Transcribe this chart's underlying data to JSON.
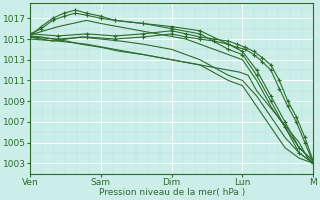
{
  "bg_color": "#cceee8",
  "grid_color_major": "#ffffff",
  "grid_color_minor": "#b8ddd8",
  "line_color": "#2d6b2d",
  "ylabel_text": "Pression niveau de la mer( hPa )",
  "yticks": [
    1003,
    1005,
    1007,
    1009,
    1011,
    1013,
    1015,
    1017
  ],
  "xlabels": [
    "Ven",
    "Sam",
    "Dim",
    "Lun",
    "M"
  ],
  "ylim": [
    1002.0,
    1018.5
  ],
  "xlim": [
    0,
    100
  ],
  "series": [
    {
      "x": [
        0,
        4,
        8,
        13,
        18,
        25,
        32,
        40,
        50,
        60,
        70,
        75,
        80,
        85,
        90,
        95,
        100
      ],
      "y": [
        1015.2,
        1015.0,
        1014.8,
        1015.0,
        1015.2,
        1015.0,
        1014.8,
        1014.5,
        1014.0,
        1013.0,
        1011.5,
        1011.0,
        1009.5,
        1007.5,
        1005.5,
        1004.0,
        1003.0
      ],
      "marker": false
    },
    {
      "x": [
        0,
        4,
        8,
        13,
        18,
        25,
        32,
        40,
        50,
        60,
        70,
        75,
        80,
        85,
        90,
        95,
        100
      ],
      "y": [
        1015.3,
        1015.2,
        1015.0,
        1014.8,
        1014.5,
        1014.2,
        1013.8,
        1013.5,
        1013.0,
        1012.5,
        1011.0,
        1010.5,
        1008.5,
        1006.5,
        1004.5,
        1003.5,
        1003.0
      ],
      "marker": false
    },
    {
      "x": [
        0,
        5,
        10,
        15,
        20,
        25,
        35,
        45,
        55,
        65,
        75,
        80,
        85,
        90,
        95,
        100
      ],
      "y": [
        1015.4,
        1015.8,
        1016.2,
        1016.5,
        1016.8,
        1016.5,
        1016.0,
        1015.5,
        1015.0,
        1014.0,
        1013.0,
        1011.0,
        1008.5,
        1006.5,
        1004.5,
        1003.2
      ],
      "marker": false
    },
    {
      "x": [
        0,
        4,
        8,
        12,
        16,
        20,
        25,
        30,
        40,
        50,
        60,
        70,
        75,
        80,
        85,
        90,
        95,
        100
      ],
      "y": [
        1015.5,
        1016.0,
        1016.8,
        1017.2,
        1017.5,
        1017.3,
        1017.0,
        1016.8,
        1016.5,
        1016.2,
        1015.8,
        1014.5,
        1013.8,
        1012.0,
        1009.5,
        1007.0,
        1004.5,
        1003.2
      ],
      "marker": true
    },
    {
      "x": [
        0,
        4,
        8,
        12,
        16,
        20,
        25,
        30,
        40,
        50,
        60,
        70,
        75,
        80,
        85,
        90,
        95,
        100
      ],
      "y": [
        1015.3,
        1016.2,
        1017.0,
        1017.5,
        1017.8,
        1017.5,
        1017.2,
        1016.8,
        1016.5,
        1016.0,
        1015.5,
        1014.0,
        1013.5,
        1011.5,
        1009.0,
        1006.5,
        1004.0,
        1003.0
      ],
      "marker": true
    },
    {
      "x": [
        0,
        10,
        20,
        30,
        40,
        50,
        55,
        60,
        65,
        70,
        73,
        76,
        79,
        82,
        85,
        88,
        91,
        94,
        97,
        100
      ],
      "y": [
        1015.5,
        1015.3,
        1015.5,
        1015.3,
        1015.5,
        1015.8,
        1015.5,
        1015.2,
        1015.0,
        1014.8,
        1014.5,
        1014.2,
        1013.8,
        1013.2,
        1012.5,
        1011.0,
        1009.0,
        1007.5,
        1005.5,
        1003.2
      ],
      "marker": true
    },
    {
      "x": [
        0,
        10,
        20,
        30,
        40,
        50,
        55,
        60,
        65,
        70,
        73,
        76,
        79,
        82,
        85,
        88,
        91,
        94,
        97,
        100
      ],
      "y": [
        1015.2,
        1015.0,
        1015.2,
        1015.0,
        1015.2,
        1015.5,
        1015.2,
        1015.0,
        1014.8,
        1014.5,
        1014.2,
        1014.0,
        1013.5,
        1012.8,
        1012.0,
        1010.2,
        1008.5,
        1007.0,
        1005.0,
        1003.0
      ],
      "marker": true
    },
    {
      "x": [
        0,
        10,
        20,
        30,
        40,
        50,
        60,
        70,
        74,
        77,
        80,
        83,
        86,
        89,
        92,
        95,
        98,
        100
      ],
      "y": [
        1015.0,
        1014.8,
        1014.5,
        1014.0,
        1013.5,
        1013.0,
        1012.5,
        1012.0,
        1011.8,
        1011.5,
        1010.0,
        1009.0,
        1008.0,
        1007.0,
        1006.0,
        1005.0,
        1003.5,
        1003.0
      ],
      "marker": false
    }
  ]
}
